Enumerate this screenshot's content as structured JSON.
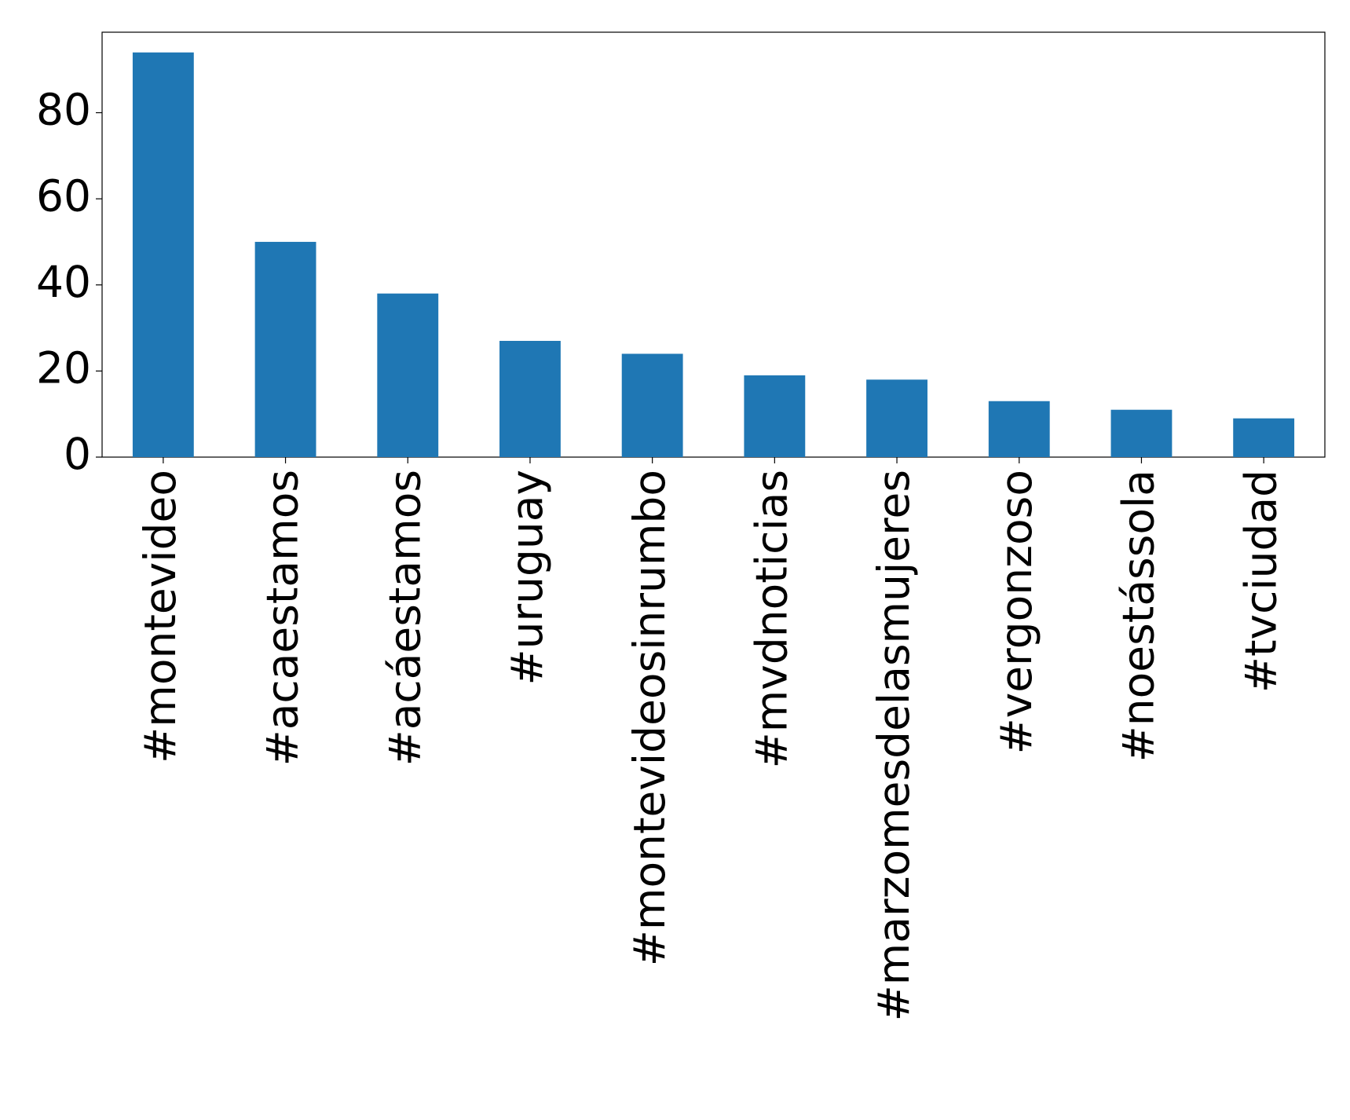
{
  "chart_data": {
    "type": "bar",
    "categories": [
      "#montevideo",
      "#acaestamos",
      "#acáestamos",
      "#uruguay",
      "#montevideosinrumbo",
      "#mvdnoticias",
      "#marzomesdelasmujeres",
      "#vergonzoso",
      "#noestássola",
      "#tvciudad"
    ],
    "values": [
      94,
      50,
      38,
      27,
      24,
      19,
      18,
      13,
      11,
      9
    ],
    "color": "#1f77b4",
    "ylim": [
      0,
      98.7
    ],
    "yticks": [
      0,
      20,
      40,
      60,
      80
    ],
    "grid": false
  }
}
